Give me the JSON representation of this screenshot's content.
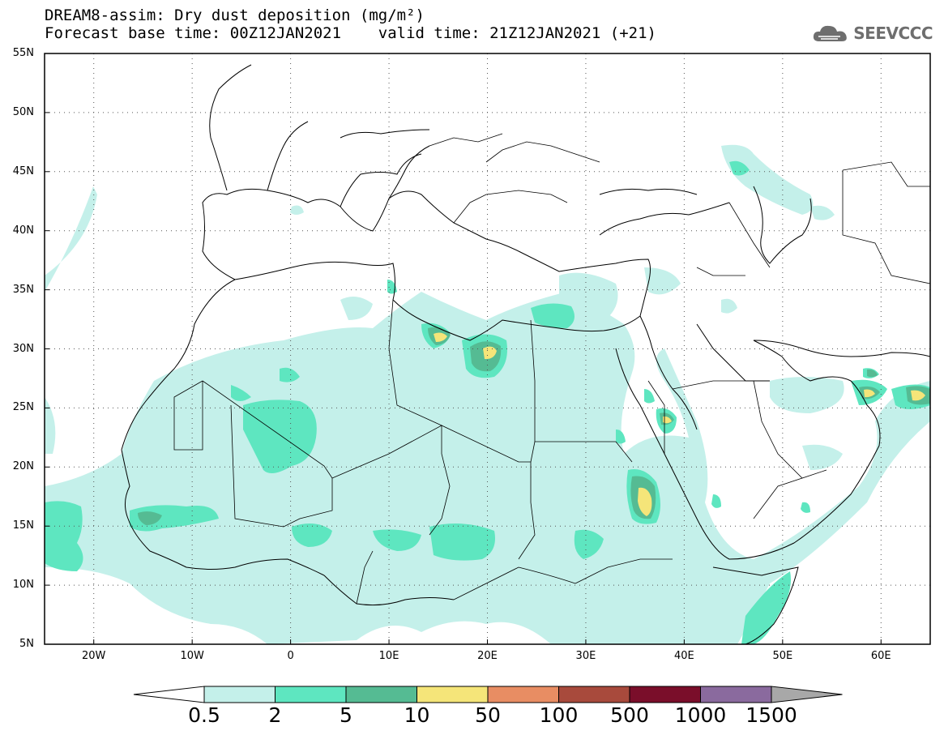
{
  "title": {
    "line1": "DREAM8-assim: Dry dust deposition (mg/m²)",
    "line2": "Forecast base time: 00Z12JAN2021    valid time: 21Z12JAN2021 (+21)"
  },
  "logo": {
    "text": "SEEVCCC",
    "icon": "cloud-logo-icon",
    "color": "#6e6e6e"
  },
  "map": {
    "lon_range": [
      -25,
      65
    ],
    "lat_range": [
      5,
      55
    ],
    "lat_ticks": [
      "55N",
      "50N",
      "45N",
      "40N",
      "35N",
      "30N",
      "25N",
      "20N",
      "15N",
      "10N",
      "5N"
    ],
    "lon_ticks": [
      "20W",
      "10W",
      "0",
      "10E",
      "20E",
      "30E",
      "40E",
      "50E",
      "60E"
    ],
    "grid": "dotted"
  },
  "colorbar": {
    "labels": [
      "0.5",
      "2",
      "5",
      "10",
      "50",
      "100",
      "500",
      "1000",
      "1500"
    ],
    "colors": [
      "#c4f0ea",
      "#5ee6c0",
      "#55bb93",
      "#f5e579",
      "#e88d63",
      "#a84a3c",
      "#7a0e2a",
      "#8a6a9e",
      "#a8a8a8"
    ]
  }
}
